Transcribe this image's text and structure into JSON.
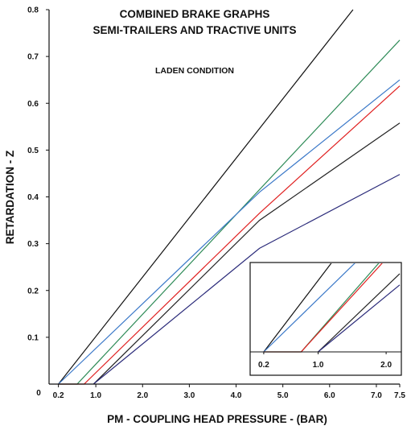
{
  "chart_data": {
    "type": "line",
    "title": "COMBINED BRAKE GRAPHS",
    "subtitle": "SEMI-TRAILERS AND TRACTIVE UNITS",
    "annotation": "LADEN CONDITION",
    "xlabel": "PM - COUPLING HEAD PRESSURE - (BAR)",
    "ylabel": "RETARDATION - Z",
    "xlim": [
      0,
      7.5
    ],
    "ylim": [
      0,
      0.8
    ],
    "origin_label": "0",
    "x_ticks": [
      {
        "value": 0.2,
        "label": "0.2"
      },
      {
        "value": 1.0,
        "label": "1.0"
      },
      {
        "value": 2.0,
        "label": "2.0"
      },
      {
        "value": 3.0,
        "label": "3.0"
      },
      {
        "value": 4.0,
        "label": "4.0"
      },
      {
        "value": 5.0,
        "label": "5.0"
      },
      {
        "value": 6.0,
        "label": "6.0"
      },
      {
        "value": 7.0,
        "label": "7.0"
      },
      {
        "value": 7.5,
        "label": "7.5"
      }
    ],
    "y_ticks": [
      {
        "value": 0.1,
        "label": "0.1"
      },
      {
        "value": 0.2,
        "label": "0.2"
      },
      {
        "value": 0.3,
        "label": "0.3"
      },
      {
        "value": 0.4,
        "label": "0.4"
      },
      {
        "value": 0.5,
        "label": "0.5"
      },
      {
        "value": 0.6,
        "label": "0.6"
      },
      {
        "value": 0.7,
        "label": "0.7"
      },
      {
        "value": 0.8,
        "label": "0.8"
      }
    ],
    "grid": false,
    "legend": "none",
    "series": [
      {
        "color": "#111111",
        "points": [
          [
            0.2,
            0.0
          ],
          [
            6.5,
            0.8
          ]
        ]
      },
      {
        "color": "#2e8b57",
        "points": [
          [
            0.2,
            0.0
          ],
          [
            0.6,
            0.0
          ],
          [
            7.5,
            0.735
          ]
        ]
      },
      {
        "color": "#3a78c8",
        "points": [
          [
            0.2,
            0.0
          ],
          [
            4.5,
            0.41
          ],
          [
            7.5,
            0.65
          ]
        ]
      },
      {
        "color": "#e02020",
        "points": [
          [
            0.2,
            0.0
          ],
          [
            0.75,
            0.0
          ],
          [
            4.5,
            0.365
          ],
          [
            7.5,
            0.637
          ]
        ]
      },
      {
        "color": "#222222",
        "points": [
          [
            0.95,
            0.0
          ],
          [
            4.5,
            0.35
          ],
          [
            7.5,
            0.558
          ]
        ]
      },
      {
        "color": "#2b2b7a",
        "points": [
          [
            0.95,
            0.0
          ],
          [
            4.5,
            0.29
          ],
          [
            7.5,
            0.448
          ]
        ]
      }
    ],
    "inset": {
      "description": "magnified view of the origin region",
      "xlim": [
        0,
        2.2
      ],
      "x_ticks": [
        {
          "value": 0.2,
          "label": "0.2"
        },
        {
          "value": 1.0,
          "label": "1.0"
        },
        {
          "value": 2.0,
          "label": "2.0"
        }
      ],
      "series": [
        {
          "color": "#111111",
          "points": [
            [
              0.2,
              0.0
            ],
            [
              1.2,
              0.4
            ]
          ]
        },
        {
          "color": "#2e8b57",
          "points": [
            [
              0.2,
              0.0
            ],
            [
              0.75,
              0.0
            ],
            [
              1.9,
              0.4
            ]
          ]
        },
        {
          "color": "#3a78c8",
          "points": [
            [
              0.2,
              0.0
            ],
            [
              1.55,
              0.4
            ]
          ]
        },
        {
          "color": "#e02020",
          "points": [
            [
              0.2,
              0.0
            ],
            [
              0.75,
              0.0
            ],
            [
              1.95,
              0.4
            ]
          ]
        },
        {
          "color": "#222222",
          "points": [
            [
              1.0,
              0.0
            ],
            [
              2.2,
              0.35
            ]
          ]
        },
        {
          "color": "#2b2b7a",
          "points": [
            [
              1.0,
              0.0
            ],
            [
              2.2,
              0.3
            ]
          ]
        }
      ]
    }
  }
}
